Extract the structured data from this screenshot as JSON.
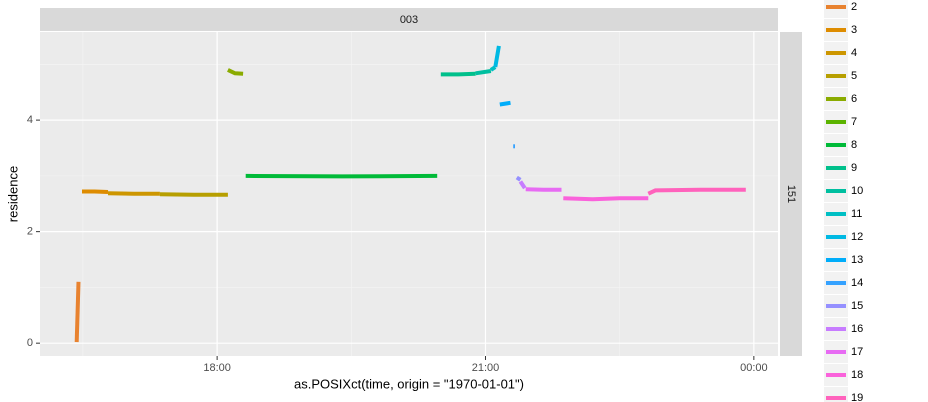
{
  "chart_data": {
    "type": "line",
    "facet_top": "003",
    "facet_right": "151",
    "xlabel": "as.POSIXct(time, origin = \"1970-01-01\")",
    "ylabel": "residence",
    "xlim": [
      16.02,
      24.27
    ],
    "ylim": [
      -0.23,
      5.58
    ],
    "xticks": [
      {
        "value": 18,
        "label": "18:00"
      },
      {
        "value": 21,
        "label": "21:00"
      },
      {
        "value": 24,
        "label": "00:00"
      }
    ],
    "yticks": [
      0,
      2,
      4
    ],
    "minor_xticks": [
      16.5,
      19.5,
      22.5
    ],
    "minor_yticks": [
      1,
      3,
      5
    ],
    "grid": true,
    "series": [
      {
        "name": "2",
        "color": "#E8822F",
        "x": [
          16.43,
          16.45
        ],
        "values": [
          0.02,
          1.1
        ]
      },
      {
        "name": "3",
        "color": "#DE8C00",
        "x": [
          16.49,
          16.63,
          16.78
        ],
        "values": [
          2.72,
          2.72,
          2.71
        ]
      },
      {
        "name": "4",
        "color": "#CD9600",
        "x": [
          16.78,
          17.07,
          17.36
        ],
        "values": [
          2.69,
          2.68,
          2.68
        ]
      },
      {
        "name": "5",
        "color": "#B79F00",
        "x": [
          17.36,
          17.74,
          18.12
        ],
        "values": [
          2.67,
          2.66,
          2.66
        ]
      },
      {
        "name": "6",
        "color": "#8AAB00",
        "x": [
          18.12,
          18.2,
          18.29
        ],
        "values": [
          4.9,
          4.84,
          4.83
        ]
      },
      {
        "name": "7",
        "color": "#5BB300",
        "x": [],
        "values": []
      },
      {
        "name": "8",
        "color": "#00BA38",
        "x": [
          18.32,
          19.4,
          20.46
        ],
        "values": [
          3.0,
          2.99,
          3.0
        ]
      },
      {
        "name": "9",
        "color": "#00C08B",
        "x": [
          20.5,
          20.7,
          20.89
        ],
        "values": [
          4.82,
          4.82,
          4.83
        ]
      },
      {
        "name": "10",
        "color": "#00BFA0",
        "x": [
          20.89,
          21.06
        ],
        "values": [
          4.84,
          4.88
        ]
      },
      {
        "name": "11",
        "color": "#00BFC4",
        "x": [
          21.06,
          21.11
        ],
        "values": [
          4.9,
          4.95
        ]
      },
      {
        "name": "12",
        "color": "#00B9E3",
        "x": [
          21.11,
          21.15
        ],
        "values": [
          4.95,
          5.33
        ]
      },
      {
        "name": "13",
        "color": "#00ADFA",
        "x": [
          21.16,
          21.28
        ],
        "values": [
          4.28,
          4.31
        ]
      },
      {
        "name": "14",
        "color": "#35A2FF",
        "x": [
          21.31,
          21.33
        ],
        "values": [
          3.53,
          3.53
        ]
      },
      {
        "name": "15",
        "color": "#9590FF",
        "x": [
          21.35,
          21.39
        ],
        "values": [
          2.97,
          2.93
        ]
      },
      {
        "name": "16",
        "color": "#C77CFF",
        "x": [
          21.39,
          21.44
        ],
        "values": [
          2.9,
          2.78
        ]
      },
      {
        "name": "17",
        "color": "#E76BF3",
        "x": [
          21.45,
          21.65,
          21.85
        ],
        "values": [
          2.76,
          2.75,
          2.75
        ]
      },
      {
        "name": "18",
        "color": "#FA62DB",
        "x": [
          21.87,
          22.2,
          22.5,
          22.82
        ],
        "values": [
          2.6,
          2.58,
          2.6,
          2.6
        ]
      },
      {
        "name": "19",
        "color": "#FF62BC",
        "x": [
          22.82,
          22.9,
          23.4,
          23.91
        ],
        "values": [
          2.68,
          2.74,
          2.75,
          2.75
        ]
      }
    ]
  }
}
